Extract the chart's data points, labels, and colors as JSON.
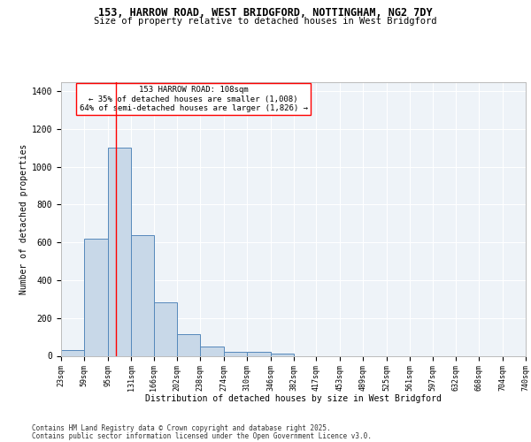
{
  "title_line1": "153, HARROW ROAD, WEST BRIDGFORD, NOTTINGHAM, NG2 7DY",
  "title_line2": "Size of property relative to detached houses in West Bridgford",
  "xlabel": "Distribution of detached houses by size in West Bridgford",
  "ylabel": "Number of detached properties",
  "annotation_title": "153 HARROW ROAD: 108sqm",
  "annotation_line2": "← 35% of detached houses are smaller (1,008)",
  "annotation_line3": "64% of semi-detached houses are larger (1,826) →",
  "footer_line1": "Contains HM Land Registry data © Crown copyright and database right 2025.",
  "footer_line2": "Contains public sector information licensed under the Open Government Licence v3.0.",
  "bar_edges": [
    23,
    59,
    95,
    131,
    166,
    202,
    238,
    274,
    310,
    346,
    382,
    417,
    453,
    489,
    525,
    561,
    597,
    632,
    668,
    704,
    740
  ],
  "bar_heights": [
    30,
    620,
    1100,
    640,
    285,
    115,
    50,
    22,
    22,
    12,
    0,
    0,
    0,
    0,
    0,
    0,
    0,
    0,
    0,
    0
  ],
  "bar_color": "#c8d8e8",
  "bar_edge_color": "#5588bb",
  "red_line_x": 108,
  "ylim": [
    0,
    1450
  ],
  "xlim": [
    23,
    740
  ],
  "background_color": "#eef3f8",
  "grid_color": "#ffffff",
  "tick_labels": [
    "23sqm",
    "59sqm",
    "95sqm",
    "131sqm",
    "166sqm",
    "202sqm",
    "238sqm",
    "274sqm",
    "310sqm",
    "346sqm",
    "382sqm",
    "417sqm",
    "453sqm",
    "489sqm",
    "525sqm",
    "561sqm",
    "597sqm",
    "632sqm",
    "668sqm",
    "704sqm",
    "740sqm"
  ],
  "ytick_labels": [
    "0",
    "200",
    "400",
    "600",
    "800",
    "1000",
    "1200",
    "1400"
  ],
  "ytick_values": [
    0,
    200,
    400,
    600,
    800,
    1000,
    1200,
    1400
  ]
}
